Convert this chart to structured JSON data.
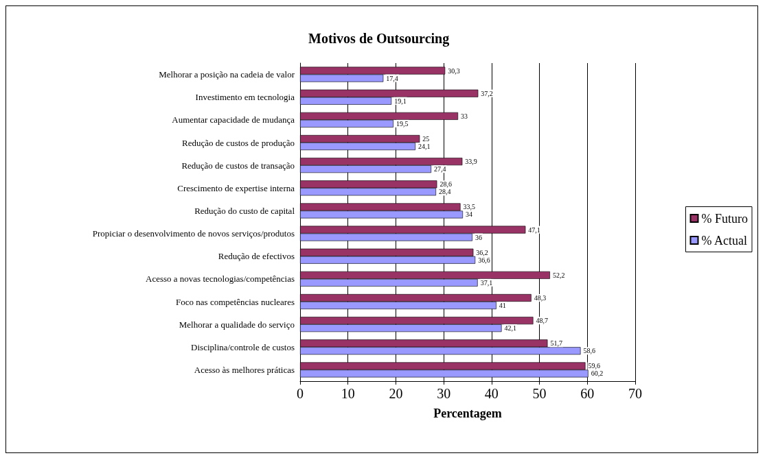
{
  "chart_data": {
    "type": "bar",
    "orientation": "horizontal",
    "title": "Motivos de Outsourcing",
    "xlabel": "Percentagem",
    "categories": [
      "Melhorar a posição na cadeia de valor",
      "Investimento em tecnologia",
      "Aumentar capacidade de mudança",
      "Redução de custos de produção",
      "Redução de custos de transação",
      "Crescimento de expertise interna",
      "Redução do custo de capital",
      "Propiciar o desenvolvimento de novos serviços/produtos",
      "Redução de efectivos",
      "Acesso a novas tecnologias/competências",
      "Foco nas competências nucleares",
      "Melhorar a qualidade do serviço",
      "Disciplina/controle de custos",
      "Acesso às melhores práticas"
    ],
    "series": [
      {
        "name": "% Futuro",
        "color": "#993366",
        "values": [
          30.3,
          37.2,
          33,
          25,
          33.9,
          28.6,
          33.5,
          47.1,
          36.2,
          52.2,
          48.3,
          48.7,
          51.7,
          59.6
        ],
        "value_labels": [
          "30,3",
          "37,2",
          "33",
          "25",
          "33,9",
          "28,6",
          "33,5",
          "47,1",
          "36,2",
          "52,2",
          "48,3",
          "48,7",
          "51,7",
          "59,6"
        ]
      },
      {
        "name": "% Actual",
        "color": "#9999ff",
        "values": [
          17.4,
          19.1,
          19.5,
          24.1,
          27.4,
          28.4,
          34,
          36,
          36.6,
          37.1,
          41,
          42.1,
          58.6,
          60.2
        ],
        "value_labels": [
          "17,4",
          "19,1",
          "19,5",
          "24,1",
          "27,4",
          "28,4",
          "34",
          "36",
          "36,6",
          "37,1",
          "41",
          "42,1",
          "58,6",
          "60,2"
        ]
      }
    ],
    "xlim": [
      0,
      70
    ],
    "xticks": [
      0,
      10,
      20,
      30,
      40,
      50,
      60,
      70
    ],
    "grid": "x",
    "legend": "right"
  }
}
